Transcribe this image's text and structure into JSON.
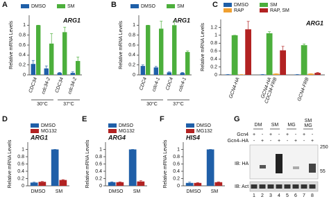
{
  "chart_data": [
    {
      "type": "bar",
      "label": "A",
      "title": "ARG1",
      "ylabel": "Relative mRNA Levels",
      "categories": [
        "CDC34",
        "cdc34-2",
        "CDC34",
        "cdc34-2"
      ],
      "groups": [
        "30°C",
        "37°C"
      ],
      "series": [
        {
          "name": "DMSO",
          "color": "#1f5fa8",
          "values": [
            0.22,
            0.13,
            0.04,
            0.04
          ],
          "errors": [
            0.07,
            0.05,
            0.01,
            0.02
          ]
        },
        {
          "name": "SM",
          "color": "#4caf3c",
          "values": [
            1.0,
            0.63,
            0.86,
            0.28
          ],
          "errors": [
            0,
            0.2,
            0.1,
            0.08
          ]
        }
      ],
      "ylim": [
        0,
        1.2
      ],
      "yticks": [
        0,
        0.2,
        0.4,
        0.6,
        0.8,
        1
      ]
    },
    {
      "type": "bar",
      "label": "B",
      "title": "ARG1",
      "ylabel": "Relative mRNA Levels",
      "categories": [
        "CDC4",
        "cdc4-1",
        "CDC4",
        "cdc4-1"
      ],
      "groups": [
        "30°C",
        "37°C"
      ],
      "series": [
        {
          "name": "DMSO",
          "color": "#1f5fa8",
          "values": [
            0.18,
            0.15,
            0.05,
            0.04
          ],
          "errors": [
            0.02,
            0.02,
            0.01,
            0.01
          ]
        },
        {
          "name": "SM",
          "color": "#4caf3c",
          "values": [
            1.0,
            0.93,
            1.0,
            0.46
          ],
          "errors": [
            0,
            0.15,
            0.08,
            0.02
          ]
        }
      ],
      "ylim": [
        0,
        1.2
      ],
      "yticks": [
        0,
        0.2,
        0.4,
        0.6,
        0.8,
        1
      ]
    },
    {
      "type": "bar",
      "label": "C",
      "title": "ARG1",
      "ylabel": "Relative mRNA Levels",
      "categories": [
        "GCN4-HA",
        [
          "GCN4-HA",
          "CDC34-FRB"
        ],
        "GCN4-FRB"
      ],
      "series": [
        {
          "name": "DMSO",
          "color": "#1f5fa8",
          "values": [
            0.01,
            0.01,
            0.01
          ],
          "errors": [
            0,
            0,
            0
          ]
        },
        {
          "name": "SM",
          "color": "#4caf3c",
          "values": [
            1.0,
            1.05,
            0.75
          ],
          "errors": [
            0,
            0.04,
            0.03
          ]
        },
        {
          "name": "RAP",
          "color": "#f0a030",
          "values": [
            0.01,
            0.03,
            0.03
          ],
          "errors": [
            0,
            0,
            0
          ]
        },
        {
          "name": "RAP, SM",
          "color": "#b22222",
          "values": [
            1.15,
            0.62,
            0.05
          ],
          "errors": [
            0.2,
            0.1,
            0.01
          ]
        }
      ],
      "ylim": [
        0,
        1.4
      ],
      "yticks": [
        0,
        0.2,
        0.4,
        0.6,
        0.8,
        1,
        1.2
      ]
    },
    {
      "type": "bar",
      "label": "D",
      "title": "ARG1",
      "ylabel": "Relative mRNA Levels",
      "categories": [
        "DMSO",
        "SM"
      ],
      "series": [
        {
          "name": "DMSO",
          "color": "#1f5fa8",
          "values": [
            0.09,
            1.0
          ],
          "errors": [
            0.01,
            0
          ]
        },
        {
          "name": "MG132",
          "color": "#b22222",
          "values": [
            0.11,
            0.16
          ],
          "errors": [
            0.01,
            0.01
          ]
        }
      ],
      "ylim": [
        0,
        1.2
      ],
      "yticks": [
        0,
        0.2,
        0.4,
        0.6,
        0.8,
        1
      ]
    },
    {
      "type": "bar",
      "label": "E",
      "title": "ARG4",
      "ylabel": "Relative mRNA Levels",
      "categories": [
        "DMSO",
        "SM"
      ],
      "series": [
        {
          "name": "DMSO",
          "color": "#1f5fa8",
          "values": [
            0.1,
            1.0
          ],
          "errors": [
            0.01,
            0
          ]
        },
        {
          "name": "MG132",
          "color": "#b22222",
          "values": [
            0.1,
            0.12
          ],
          "errors": [
            0.01,
            0.02
          ]
        }
      ],
      "ylim": [
        0,
        1.2
      ],
      "yticks": [
        0,
        0.2,
        0.4,
        0.6,
        0.8,
        1
      ]
    },
    {
      "type": "bar",
      "label": "F",
      "title": "HIS4",
      "ylabel": "Relative mRNA Levels",
      "categories": [
        "DMSO",
        "SM"
      ],
      "series": [
        {
          "name": "DMSO",
          "color": "#1f5fa8",
          "values": [
            0.08,
            1.0
          ],
          "errors": [
            0.02,
            0
          ]
        },
        {
          "name": "MG132",
          "color": "#b22222",
          "values": [
            0.08,
            0.1
          ],
          "errors": [
            0.01,
            0.01
          ]
        }
      ],
      "ylim": [
        0,
        1.2
      ],
      "yticks": [
        0,
        0.2,
        0.4,
        0.6,
        0.8,
        1
      ]
    }
  ],
  "blot": {
    "label": "G",
    "groups": [
      "DM",
      "SM",
      "MG",
      [
        "SM",
        "MG"
      ]
    ],
    "rows": [
      {
        "name": "Gcn4",
        "signs": [
          "+",
          "-",
          "+",
          "-",
          "+",
          "-",
          "+",
          "-"
        ]
      },
      {
        "name": "Gcn4–HA",
        "signs": [
          "-",
          "+",
          "-",
          "+",
          "-",
          "+",
          "-",
          "+"
        ]
      }
    ],
    "markers": [
      250,
      55
    ],
    "panels": [
      "IB: HA",
      "IB: Act"
    ],
    "lanes": [
      "1",
      "2",
      "3",
      "4",
      "5",
      "6",
      "7",
      "8"
    ]
  }
}
